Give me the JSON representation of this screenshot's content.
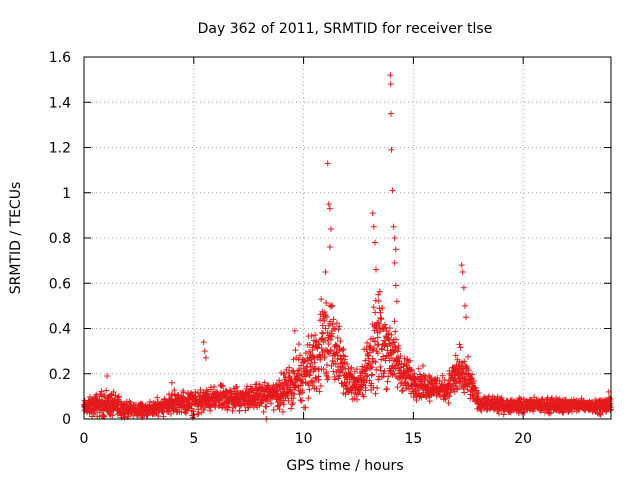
{
  "chart_data": {
    "type": "scatter",
    "title": "Day 362 of 2011, SRMTID for receiver tlse",
    "xlabel": "GPS time / hours",
    "ylabel": "SRMTID / TECUs",
    "xlim": [
      0,
      24
    ],
    "ylim": [
      0,
      1.6
    ],
    "x_ticks": [
      0,
      5,
      10,
      15,
      20
    ],
    "x_tick_labels": [
      "0",
      "5",
      "10",
      "15",
      "20"
    ],
    "y_ticks": [
      0,
      0.2,
      0.4,
      0.6,
      0.8,
      1.0,
      1.2,
      1.4,
      1.6
    ],
    "y_tick_labels": [
      "0",
      "0.2",
      "0.4",
      "0.6",
      "0.8",
      "1",
      "1.2",
      "1.4",
      "1.6"
    ],
    "grid": true,
    "marker": "+",
    "marker_color": "#e41a1c",
    "notable_points": [
      {
        "x": 1.05,
        "y": 0.19
      },
      {
        "x": 4.0,
        "y": 0.16
      },
      {
        "x": 5.45,
        "y": 0.34
      },
      {
        "x": 5.5,
        "y": 0.3
      },
      {
        "x": 5.55,
        "y": 0.27
      },
      {
        "x": 8.3,
        "y": 0.0
      },
      {
        "x": 9.1,
        "y": 0.12
      },
      {
        "x": 9.6,
        "y": 0.39
      },
      {
        "x": 10.8,
        "y": 0.53
      },
      {
        "x": 11.0,
        "y": 0.65
      },
      {
        "x": 11.1,
        "y": 1.13
      },
      {
        "x": 11.15,
        "y": 0.95
      },
      {
        "x": 11.2,
        "y": 0.93
      },
      {
        "x": 11.25,
        "y": 0.84
      },
      {
        "x": 11.2,
        "y": 0.76
      },
      {
        "x": 13.15,
        "y": 0.91
      },
      {
        "x": 13.2,
        "y": 0.85
      },
      {
        "x": 13.25,
        "y": 0.78
      },
      {
        "x": 13.3,
        "y": 0.66
      },
      {
        "x": 13.4,
        "y": 0.55
      },
      {
        "x": 13.5,
        "y": 0.47
      },
      {
        "x": 13.95,
        "y": 1.52
      },
      {
        "x": 13.97,
        "y": 1.48
      },
      {
        "x": 13.98,
        "y": 1.35
      },
      {
        "x": 14.0,
        "y": 1.19
      },
      {
        "x": 14.05,
        "y": 1.01
      },
      {
        "x": 14.1,
        "y": 0.85
      },
      {
        "x": 14.15,
        "y": 0.8
      },
      {
        "x": 14.2,
        "y": 0.75
      },
      {
        "x": 14.15,
        "y": 0.69
      },
      {
        "x": 14.2,
        "y": 0.59
      },
      {
        "x": 14.25,
        "y": 0.52
      },
      {
        "x": 17.2,
        "y": 0.68
      },
      {
        "x": 17.25,
        "y": 0.65
      },
      {
        "x": 17.3,
        "y": 0.58
      },
      {
        "x": 17.35,
        "y": 0.5
      },
      {
        "x": 17.4,
        "y": 0.45
      },
      {
        "x": 17.1,
        "y": 0.33
      },
      {
        "x": 23.9,
        "y": 0.12
      }
    ],
    "series_profile": {
      "name": "SRMTID",
      "description_points_x": [
        0,
        1,
        2,
        3,
        4,
        5,
        6,
        7,
        8,
        9,
        10,
        10.5,
        11,
        11.5,
        12,
        12.5,
        13,
        13.5,
        14,
        14.5,
        15,
        15.5,
        16,
        16.5,
        17,
        17.5,
        18,
        19,
        20,
        21,
        22,
        23,
        24
      ],
      "baseline_y": [
        0.05,
        0.07,
        0.04,
        0.04,
        0.07,
        0.07,
        0.09,
        0.09,
        0.1,
        0.12,
        0.2,
        0.25,
        0.35,
        0.3,
        0.17,
        0.15,
        0.25,
        0.35,
        0.3,
        0.2,
        0.17,
        0.15,
        0.14,
        0.13,
        0.2,
        0.17,
        0.07,
        0.06,
        0.06,
        0.06,
        0.06,
        0.06,
        0.06
      ],
      "spread_y": [
        0.03,
        0.06,
        0.03,
        0.03,
        0.05,
        0.05,
        0.05,
        0.05,
        0.05,
        0.07,
        0.12,
        0.15,
        0.2,
        0.15,
        0.07,
        0.06,
        0.15,
        0.2,
        0.15,
        0.08,
        0.07,
        0.06,
        0.05,
        0.05,
        0.1,
        0.08,
        0.03,
        0.03,
        0.03,
        0.03,
        0.03,
        0.03,
        0.03
      ]
    }
  }
}
